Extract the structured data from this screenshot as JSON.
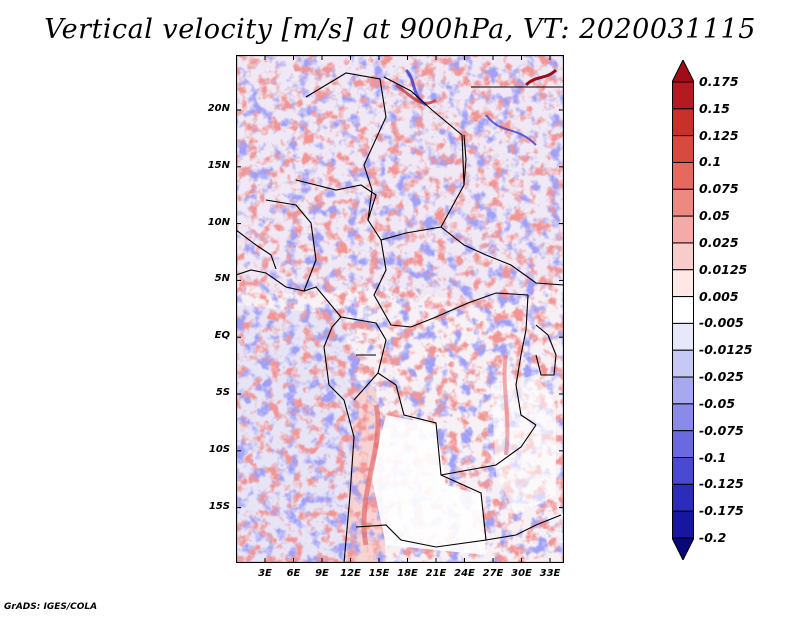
{
  "title": "Vertical velocity [m/s] at 900hPa, VT: 2020031115",
  "credit": "GrADS: IGES/COLA",
  "map": {
    "lat_labels": [
      "20N",
      "15N",
      "10N",
      "5N",
      "EQ",
      "5S",
      "10S",
      "15S"
    ],
    "lon_labels": [
      "3E",
      "6E",
      "9E",
      "12E",
      "15E",
      "18E",
      "21E",
      "24E",
      "27E",
      "30E",
      "33E"
    ]
  },
  "colorbar": {
    "labels": [
      "0.175",
      "0.15",
      "0.125",
      "0.1",
      "0.075",
      "0.05",
      "0.025",
      "0.0125",
      "0.005",
      "-0.005",
      "-0.0125",
      "-0.025",
      "-0.05",
      "-0.075",
      "-0.1",
      "-0.125",
      "-0.175",
      "-0.2"
    ],
    "colors": [
      "#a00c18",
      "#b41a22",
      "#c8302c",
      "#d84a40",
      "#e46a60",
      "#ec8a82",
      "#f4aaa6",
      "#f9cccc",
      "#fde8e6",
      "#ffffff",
      "#e8e8fb",
      "#c8c8f4",
      "#a8a8ee",
      "#8a8ae8",
      "#6a6ade",
      "#4a4ad0",
      "#2c2cba",
      "#16169e",
      "#08087a"
    ]
  }
}
